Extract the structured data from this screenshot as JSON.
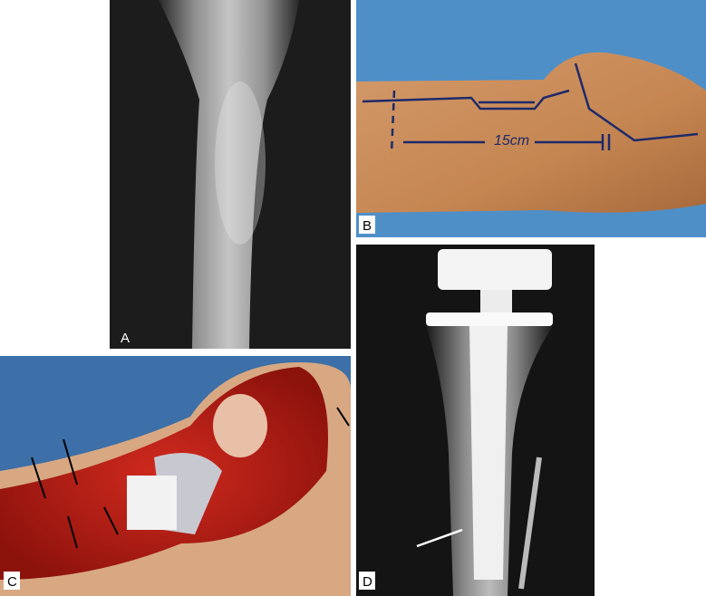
{
  "panels": [
    {
      "label": "A"
    },
    {
      "label": "B",
      "annotation": "15cm"
    },
    {
      "label": "C"
    },
    {
      "label": "D"
    }
  ]
}
